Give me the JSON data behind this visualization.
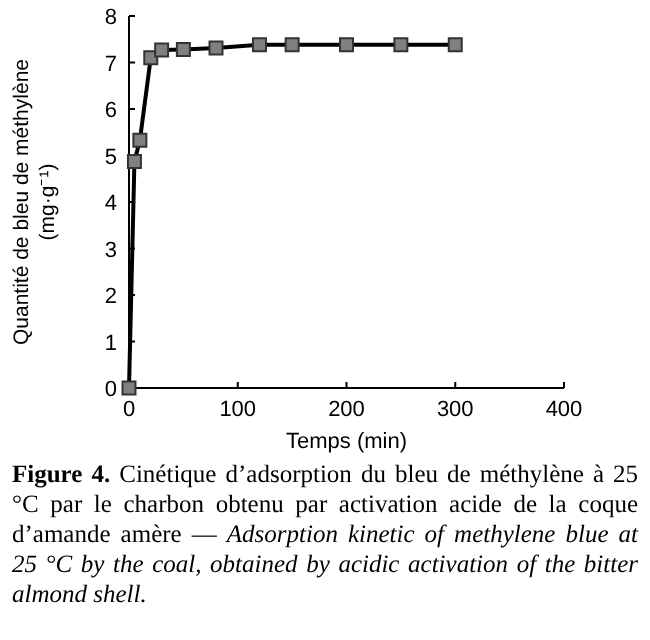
{
  "chart_data": {
    "type": "line",
    "xlabel": "Temps (min)",
    "ylabel": "Quantité de bleu de méthylène (mg·g⁻¹)",
    "x": [
      0,
      5,
      10,
      20,
      30,
      50,
      80,
      120,
      150,
      200,
      250,
      300
    ],
    "series": [
      {
        "color": "#000000",
        "values": [
          0,
          4.87,
          5.33,
          7.1,
          7.27,
          7.28,
          7.31,
          7.38,
          7.38,
          7.38,
          7.38,
          7.38
        ]
      }
    ],
    "xlim": [
      0,
      400
    ],
    "xticks": [
      0,
      100,
      200,
      300,
      400
    ],
    "ylim": [
      0,
      8
    ],
    "yticks": [
      0,
      1,
      2,
      3,
      4,
      5,
      6,
      7,
      8
    ],
    "marker": "square",
    "grid": false,
    "annotations": [
      "Figure 4.",
      "Cinétique d’adsorption du bleu de méthylène à 25 °C par le charbon obtenu par activation acide de la coque d’amande amère —",
      "Adsorption kinetic of methylene blue at 25 °C by the coal, obtained by acidic activation of the bitter almond shell."
    ]
  }
}
